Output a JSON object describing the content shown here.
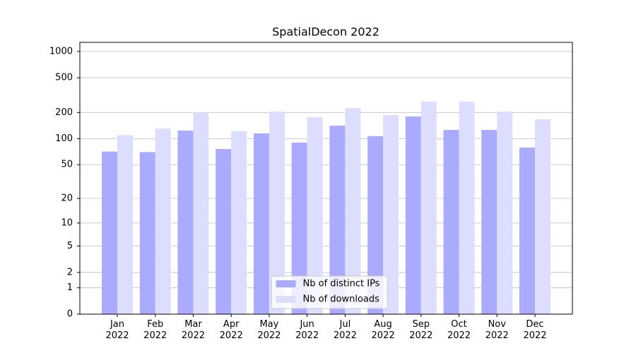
{
  "chart_data": {
    "type": "bar",
    "title": "SpatialDecon 2022",
    "categories": [
      "Jan\n2022",
      "Feb\n2022",
      "Mar\n2022",
      "Apr\n2022",
      "May\n2022",
      "Jun\n2022",
      "Jul\n2022",
      "Aug\n2022",
      "Sep\n2022",
      "Oct\n2022",
      "Nov\n2022",
      "Dec\n2022"
    ],
    "series": [
      {
        "name": "Nb of distinct IPs",
        "color": "#aaaaff",
        "values": [
          71,
          70,
          124,
          76,
          115,
          90,
          141,
          107,
          180,
          126,
          126,
          79
        ]
      },
      {
        "name": "Nb of downloads",
        "color": "#ddddff",
        "values": [
          110,
          131,
          201,
          122,
          205,
          177,
          225,
          187,
          266,
          266,
          205,
          167
        ]
      }
    ],
    "yscale": "symlog",
    "ylim": [
      0,
      1270
    ],
    "yticks": [
      0,
      1,
      2,
      5,
      10,
      20,
      50,
      100,
      200,
      500,
      1000
    ],
    "grid": true,
    "legend": "lower center"
  }
}
